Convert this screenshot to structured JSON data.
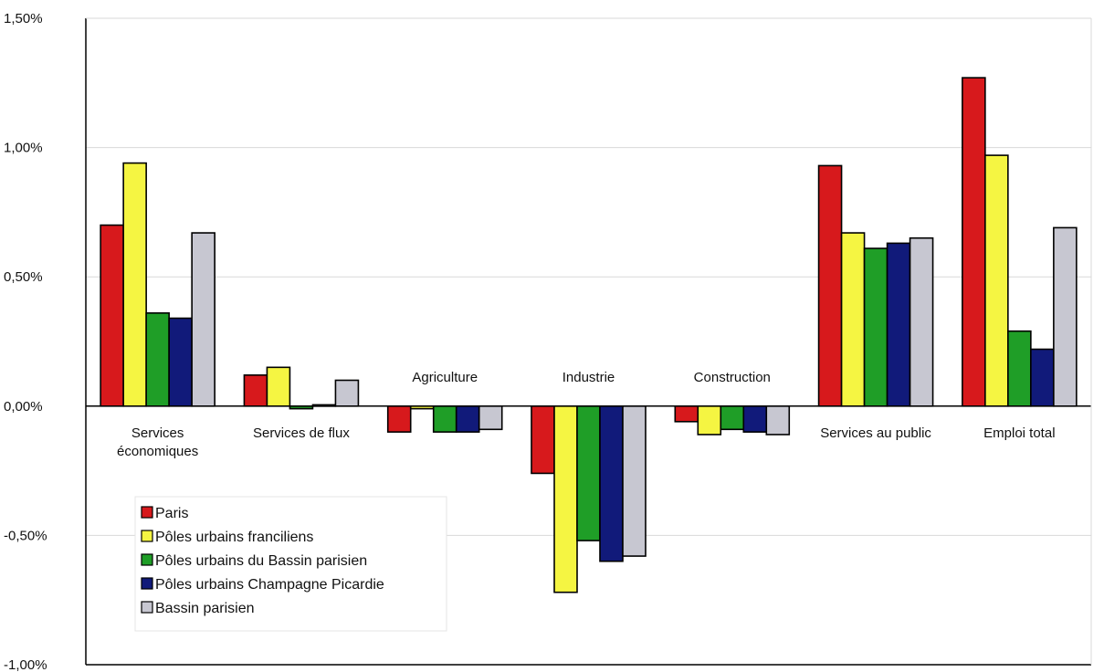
{
  "chart_data": {
    "type": "bar",
    "ylim": [
      -1.0,
      1.5
    ],
    "yticks": [
      {
        "value": 1.5,
        "label": "1,50%"
      },
      {
        "value": 1.0,
        "label": "1,00%"
      },
      {
        "value": 0.5,
        "label": "0,50%"
      },
      {
        "value": 0.0,
        "label": "0,00%"
      },
      {
        "value": -0.5,
        "label": "-0,50%"
      },
      {
        "value": -1.0,
        "label": "-1,00%"
      }
    ],
    "grid": true,
    "legend_position": "bottom-left",
    "categories": [
      {
        "lines": [
          "Services",
          "économiques"
        ],
        "placement": "below-axis"
      },
      {
        "lines": [
          "Services de flux"
        ],
        "placement": "below-axis"
      },
      {
        "lines": [
          "Agriculture"
        ],
        "placement": "above-axis"
      },
      {
        "lines": [
          "Industrie"
        ],
        "placement": "above-axis"
      },
      {
        "lines": [
          "Construction"
        ],
        "placement": "above-axis"
      },
      {
        "lines": [
          "Services au public"
        ],
        "placement": "below-axis"
      },
      {
        "lines": [
          "Emploi total"
        ],
        "placement": "below-axis"
      }
    ],
    "series": [
      {
        "name": "Paris",
        "color": "#d7191c",
        "values": [
          0.7,
          0.12,
          -0.1,
          -0.26,
          -0.06,
          0.93,
          1.27
        ]
      },
      {
        "name": "Pôles urbains franciliens",
        "color": "#f5f542",
        "values": [
          0.94,
          0.15,
          -0.01,
          -0.72,
          -0.11,
          0.67,
          0.97
        ]
      },
      {
        "name": "Pôles urbains du Bassin parisien",
        "color": "#1f9e27",
        "values": [
          0.36,
          -0.01,
          -0.1,
          -0.52,
          -0.09,
          0.61,
          0.29
        ]
      },
      {
        "name": "Pôles urbains Champagne Picardie",
        "color": "#111a7a",
        "values": [
          0.34,
          0.005,
          -0.1,
          -0.6,
          -0.1,
          0.63,
          0.22
        ]
      },
      {
        "name": "Bassin parisien",
        "color": "#c7c7d1",
        "values": [
          0.67,
          0.1,
          -0.09,
          -0.58,
          -0.11,
          0.65,
          0.69
        ]
      }
    ]
  }
}
